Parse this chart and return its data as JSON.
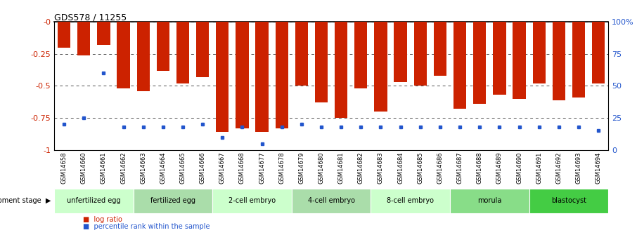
{
  "title": "GDS578 / 11255",
  "samples": [
    "GSM14658",
    "GSM14660",
    "GSM14661",
    "GSM14662",
    "GSM14663",
    "GSM14664",
    "GSM14665",
    "GSM14666",
    "GSM14667",
    "GSM14668",
    "GSM14677",
    "GSM14678",
    "GSM14679",
    "GSM14680",
    "GSM14681",
    "GSM14682",
    "GSM14683",
    "GSM14684",
    "GSM14685",
    "GSM14686",
    "GSM14687",
    "GSM14688",
    "GSM14689",
    "GSM14690",
    "GSM14691",
    "GSM14692",
    "GSM14693",
    "GSM14694"
  ],
  "log_ratio": [
    -0.2,
    -0.26,
    -0.18,
    -0.52,
    -0.54,
    -0.38,
    -0.48,
    -0.43,
    -0.86,
    -0.83,
    -0.86,
    -0.83,
    -0.5,
    -0.63,
    -0.75,
    -0.52,
    -0.7,
    -0.47,
    -0.5,
    -0.42,
    -0.68,
    -0.64,
    -0.57,
    -0.6,
    -0.48,
    -0.61,
    -0.59,
    -0.48
  ],
  "percentile_rank_pct": [
    20,
    25,
    60,
    18,
    18,
    18,
    18,
    20,
    10,
    18,
    5,
    18,
    20,
    18,
    18,
    18,
    18,
    18,
    18,
    18,
    18,
    18,
    18,
    18,
    18,
    18,
    18,
    15
  ],
  "stages": [
    {
      "label": "unfertilized egg",
      "start": 0,
      "end": 4,
      "color": "#ccffcc"
    },
    {
      "label": "fertilized egg",
      "start": 4,
      "end": 8,
      "color": "#aaddaa"
    },
    {
      "label": "2-cell embryo",
      "start": 8,
      "end": 12,
      "color": "#ccffcc"
    },
    {
      "label": "4-cell embryo",
      "start": 12,
      "end": 16,
      "color": "#aaddaa"
    },
    {
      "label": "8-cell embryo",
      "start": 16,
      "end": 20,
      "color": "#ccffcc"
    },
    {
      "label": "morula",
      "start": 20,
      "end": 24,
      "color": "#88dd88"
    },
    {
      "label": "blastocyst",
      "start": 24,
      "end": 28,
      "color": "#44cc44"
    }
  ],
  "bar_color": "#cc2200",
  "dot_color": "#2255cc",
  "ylim_left": [
    -1.0,
    0.0
  ],
  "ylim_right": [
    0,
    100
  ],
  "yticks_left": [
    0.0,
    -0.25,
    -0.5,
    -0.75,
    -1.0
  ],
  "ytick_labels_left": [
    "-0",
    "-0.25",
    "-0.5",
    "-0.75",
    "-1"
  ],
  "yticks_right": [
    100,
    75,
    50,
    25,
    0
  ],
  "ytick_labels_right": [
    "100%",
    "75",
    "50",
    "25",
    "0"
  ],
  "background_color": "#ffffff",
  "stage_bg_grey": "#cccccc"
}
